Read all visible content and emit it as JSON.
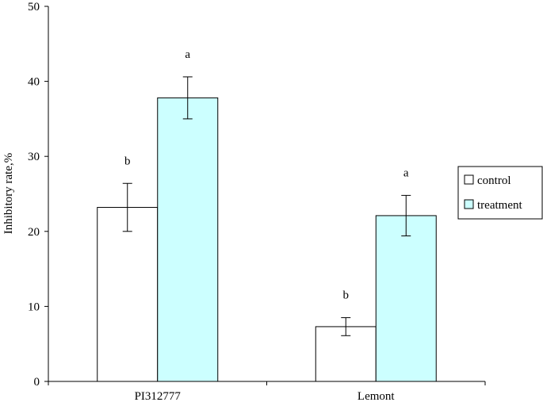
{
  "chart_data": {
    "type": "bar",
    "title": "",
    "xlabel": "",
    "ylabel": "Inhibitory rate,%",
    "ylim": [
      0,
      50
    ],
    "yticks": [
      0,
      10,
      20,
      30,
      40,
      50
    ],
    "categories": [
      "PI312777",
      "Lemont"
    ],
    "series": [
      {
        "name": "control",
        "color": "#ffffff",
        "values": [
          23.2,
          7.3
        ],
        "errors": [
          3.2,
          1.2
        ],
        "significance": [
          "b",
          "b"
        ]
      },
      {
        "name": "treatment",
        "color": "#ccffff",
        "values": [
          37.8,
          22.1
        ],
        "errors": [
          2.8,
          2.7
        ],
        "significance": [
          "a",
          "a"
        ]
      }
    ],
    "legend_position": "right",
    "grid": false
  }
}
